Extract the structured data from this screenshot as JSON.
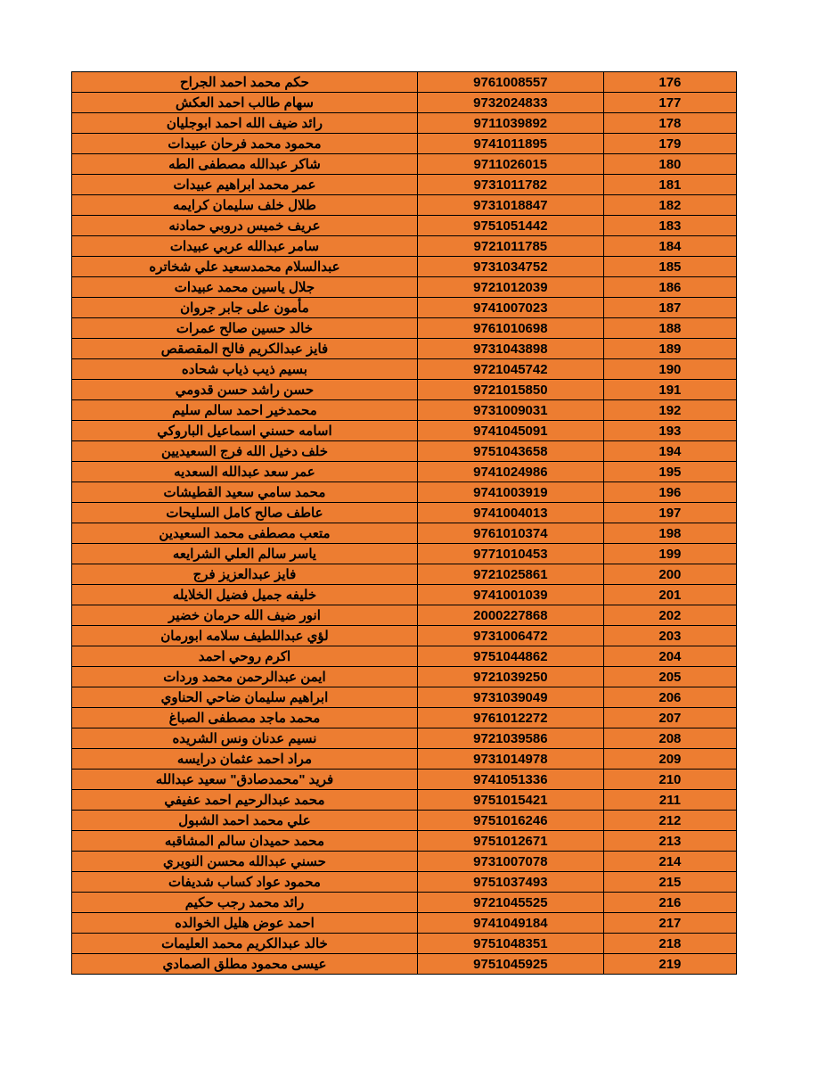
{
  "table": {
    "background_color": "#ed7d31",
    "border_color": "#000000",
    "text_color": "#000000",
    "font_weight": "bold",
    "font_size": 15,
    "columns": [
      {
        "key": "name",
        "width": "52%",
        "align": "center"
      },
      {
        "key": "number",
        "width": "28%",
        "align": "center"
      },
      {
        "key": "index",
        "width": "20%",
        "align": "center"
      }
    ],
    "rows": [
      {
        "name": "حكم محمد احمد الجراح",
        "number": "9761008557",
        "index": "176"
      },
      {
        "name": "سهام طالب احمد العكش",
        "number": "9732024833",
        "index": "177"
      },
      {
        "name": "رائد ضيف الله احمد ابوجليان",
        "number": "9711039892",
        "index": "178"
      },
      {
        "name": "محمود محمد فرحان عبيدات",
        "number": "9741011895",
        "index": "179"
      },
      {
        "name": "شاكر عبدالله مصطفى الطه",
        "number": "9711026015",
        "index": "180"
      },
      {
        "name": "عمر محمد ابراهيم عبيدات",
        "number": "9731011782",
        "index": "181"
      },
      {
        "name": "طلال خلف سليمان كرايمه",
        "number": "9731018847",
        "index": "182"
      },
      {
        "name": "عريف خميس دروبي حمادنه",
        "number": "9751051442",
        "index": "183"
      },
      {
        "name": "سامر عبدالله عربي عبيدات",
        "number": "9721011785",
        "index": "184"
      },
      {
        "name": "عبدالسلام محمدسعيد علي شخاتره",
        "number": "9731034752",
        "index": "185"
      },
      {
        "name": "جلال ياسين محمد عبيدات",
        "number": "9721012039",
        "index": "186"
      },
      {
        "name": "مأمون على جابر جروان",
        "number": "9741007023",
        "index": "187"
      },
      {
        "name": "خالد حسين صالح عمرات",
        "number": "9761010698",
        "index": "188"
      },
      {
        "name": "فايز عبدالكريم فالح المقصقص",
        "number": "9731043898",
        "index": "189"
      },
      {
        "name": "بسيم ذيب ذياب شحاده",
        "number": "9721045742",
        "index": "190"
      },
      {
        "name": "حسن راشد حسن قدومي",
        "number": "9721015850",
        "index": "191"
      },
      {
        "name": "محمدخير احمد سالم سليم",
        "number": "9731009031",
        "index": "192"
      },
      {
        "name": "اسامه حسني اسماعيل الباروكي",
        "number": "9741045091",
        "index": "193"
      },
      {
        "name": "خلف دخيل الله فرج السعيديين",
        "number": "9751043658",
        "index": "194"
      },
      {
        "name": "عمر سعد عبدالله السعديه",
        "number": "9741024986",
        "index": "195"
      },
      {
        "name": "محمد سامي سعيد القطيشات",
        "number": "9741003919",
        "index": "196"
      },
      {
        "name": "عاطف صالح كامل السليحات",
        "number": "9741004013",
        "index": "197"
      },
      {
        "name": "متعب مصطفى محمد السعيدين",
        "number": "9761010374",
        "index": "198"
      },
      {
        "name": "ياسر سالم العلي الشرايعه",
        "number": "9771010453",
        "index": "199"
      },
      {
        "name": "فايز عبدالعزيز فرج",
        "number": "9721025861",
        "index": "200"
      },
      {
        "name": "خليفه جميل فضيل الخلايله",
        "number": "9741001039",
        "index": "201"
      },
      {
        "name": "انور ضيف الله حرمان خضير",
        "number": "2000227868",
        "index": "202"
      },
      {
        "name": "لؤي عبداللطيف سلامه ابورمان",
        "number": "9731006472",
        "index": "203"
      },
      {
        "name": "اكرم روحي احمد",
        "number": "9751044862",
        "index": "204"
      },
      {
        "name": "ايمن عبدالرحمن محمد وردات",
        "number": "9721039250",
        "index": "205"
      },
      {
        "name": "ابراهيم سليمان ضاحي الحناوي",
        "number": "9731039049",
        "index": "206"
      },
      {
        "name": "محمد ماجد مصطفى الصباغ",
        "number": "9761012272",
        "index": "207"
      },
      {
        "name": "نسيم عدنان ونس الشريده",
        "number": "9721039586",
        "index": "208"
      },
      {
        "name": "مراد احمد عثمان درايسه",
        "number": "9731014978",
        "index": "209"
      },
      {
        "name": "فريد \"محمدصادق\" سعيد عبدالله",
        "number": "9741051336",
        "index": "210"
      },
      {
        "name": "محمد عبدالرحيم احمد عفيفي",
        "number": "9751015421",
        "index": "211"
      },
      {
        "name": "علي محمد احمد الشبول",
        "number": "9751016246",
        "index": "212"
      },
      {
        "name": "محمد حميدان سالم المشاقبه",
        "number": "9751012671",
        "index": "213"
      },
      {
        "name": "حسني عبدالله محسن النويري",
        "number": "9731007078",
        "index": "214"
      },
      {
        "name": "محمود عواد كساب شديفات",
        "number": "9751037493",
        "index": "215"
      },
      {
        "name": "رائد محمد رجب حكيم",
        "number": "9721045525",
        "index": "216"
      },
      {
        "name": "احمد عوض هليل الخوالده",
        "number": "9741049184",
        "index": "217"
      },
      {
        "name": "خالد عبدالكريم محمد العليمات",
        "number": "9751048351",
        "index": "218"
      },
      {
        "name": "عيسى محمود مطلق الصمادي",
        "number": "9751045925",
        "index": "219"
      }
    ]
  }
}
